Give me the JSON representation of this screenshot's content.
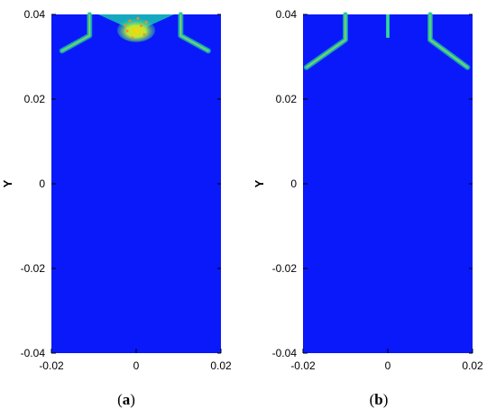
{
  "chart_data": [
    {
      "type": "heatmap",
      "panel": "a",
      "caption_open": "(",
      "caption_letter": "a",
      "caption_close": ")",
      "ylabel": "Y",
      "xlim": [
        -0.02,
        0.02
      ],
      "ylim": [
        -0.04,
        0.04
      ],
      "x_ticks": [
        -0.02,
        0,
        0.02
      ],
      "x_tick_labels": [
        "-0.02",
        "0",
        "0.02"
      ],
      "y_ticks": [
        -0.04,
        -0.02,
        0,
        0.02,
        0.04
      ],
      "y_tick_labels": [
        "-0.04",
        "-0.02",
        "0",
        "0.02",
        "0.04"
      ],
      "colors": {
        "background": "#0a19fa",
        "band": "#18c3b4",
        "hot": "#ffd400",
        "mid": "#62e06a"
      },
      "features": [
        {
          "kind": "wall",
          "points": [
            [
              -0.011,
              0.04
            ],
            [
              -0.011,
              0.035
            ],
            [
              -0.0175,
              0.0314
            ]
          ]
        },
        {
          "kind": "wall",
          "points": [
            [
              0.0105,
              0.04
            ],
            [
              0.0105,
              0.035
            ],
            [
              0.017,
              0.0314
            ]
          ]
        },
        {
          "kind": "plume",
          "x": 0.0,
          "y_top": 0.04,
          "y_bottom": 0.0338,
          "half_width": 0.0056
        },
        {
          "kind": "droplets",
          "points": [
            [
              -0.0015,
              0.0385
            ],
            [
              0.0012,
              0.0373
            ],
            [
              -0.0021,
              0.0361
            ],
            [
              0.0019,
              0.0352
            ],
            [
              0.0004,
              0.0391
            ],
            [
              -0.0009,
              0.0345
            ],
            [
              0.0024,
              0.0382
            ],
            [
              -0.0025,
              0.0374
            ]
          ]
        }
      ]
    },
    {
      "type": "heatmap",
      "panel": "b",
      "caption_open": "(",
      "caption_letter": "b",
      "caption_close": ")",
      "ylabel": "Y",
      "xlim": [
        -0.02,
        0.02
      ],
      "ylim": [
        -0.04,
        0.04
      ],
      "x_ticks": [
        -0.02,
        0,
        0.02
      ],
      "x_tick_labels": [
        "-0.02",
        "0",
        "0.02"
      ],
      "y_ticks": [
        -0.04,
        -0.02,
        0,
        0.02,
        0.04
      ],
      "y_tick_labels": [
        "-0.04",
        "-0.02",
        "0",
        "0.02",
        "0.04"
      ],
      "colors": {
        "background": "#0a19fa",
        "band": "#18c3b4",
        "hot": "#ffd400",
        "mid": "#62e06a"
      },
      "features": [
        {
          "kind": "wall",
          "points": [
            [
              -0.01,
              0.04
            ],
            [
              -0.01,
              0.034
            ],
            [
              -0.0192,
              0.0275
            ]
          ]
        },
        {
          "kind": "wall",
          "points": [
            [
              0.01,
              0.04
            ],
            [
              0.01,
              0.034
            ],
            [
              0.0188,
              0.0275
            ]
          ]
        },
        {
          "kind": "jet",
          "x": 0.0,
          "y_top": 0.04,
          "y_bottom": 0.0345
        }
      ]
    }
  ]
}
